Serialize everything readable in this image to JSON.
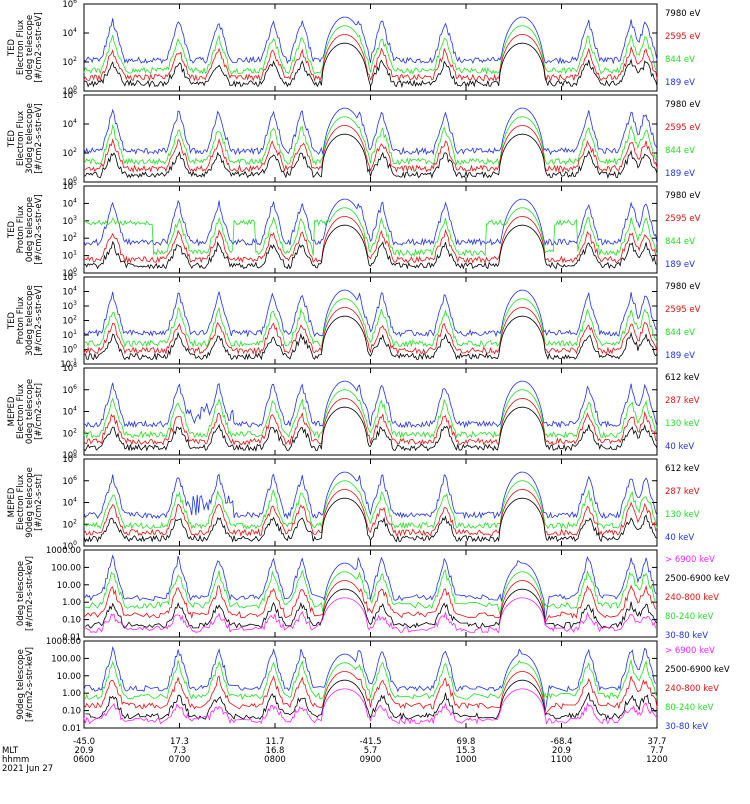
{
  "colors": {
    "blue": "#1f33e6",
    "red": "#e51010",
    "green": "#22e022",
    "black": "#000000",
    "magenta": "#ff22ff"
  },
  "chart_data": [
    {
      "type": "line",
      "scale": "log",
      "ylim": [
        1,
        1000000
      ],
      "ylabel": [
        "TED",
        "Electron Flux",
        "0deg telescope",
        "[#/cm2-s-str-eV]"
      ],
      "series": [
        {
          "name": "7980 eV",
          "color": "black"
        },
        {
          "name": "2595 eV",
          "color": "red"
        },
        {
          "name": "844 eV",
          "color": "green"
        },
        {
          "name": "189 eV",
          "color": "blue"
        }
      ],
      "ticks": [
        "10^0",
        "10^2",
        "10^4",
        "10^6"
      ]
    },
    {
      "type": "line",
      "scale": "log",
      "ylim": [
        1,
        1000000
      ],
      "ylabel": [
        "TED",
        "Electron Flux",
        "30deg telescope",
        "[#/cm2-s-str-eV]"
      ],
      "series": [
        {
          "name": "7980 eV",
          "color": "black"
        },
        {
          "name": "2595 eV",
          "color": "red"
        },
        {
          "name": "844 eV",
          "color": "green"
        },
        {
          "name": "189 eV",
          "color": "blue"
        }
      ],
      "ticks": [
        "10^0",
        "10^2",
        "10^4",
        "10^6"
      ]
    },
    {
      "type": "line",
      "scale": "log",
      "ylim": [
        1,
        100000
      ],
      "ylabel": [
        "TED",
        "Proton Flux",
        "0deg telescope",
        "[#/cm2-s-str-eV]"
      ],
      "series": [
        {
          "name": "7980 eV",
          "color": "black"
        },
        {
          "name": "2595 eV",
          "color": "red"
        },
        {
          "name": "844 eV",
          "color": "green"
        },
        {
          "name": "189 eV",
          "color": "blue"
        }
      ],
      "ticks": [
        "10^0",
        "10^1",
        "10^2",
        "10^3",
        "10^4",
        "10^5"
      ]
    },
    {
      "type": "line",
      "scale": "log",
      "ylim": [
        0.1,
        100000
      ],
      "ylabel": [
        "TED",
        "Proton Flux",
        "30deg telescope",
        "[#/cm2-s-str-eV]"
      ],
      "series": [
        {
          "name": "7980 eV",
          "color": "black"
        },
        {
          "name": "2595 eV",
          "color": "red"
        },
        {
          "name": "844 eV",
          "color": "green"
        },
        {
          "name": "189 eV",
          "color": "blue"
        }
      ],
      "ticks": [
        "10^-1",
        "10^0",
        "10^1",
        "10^2",
        "10^3",
        "10^4",
        "10^5"
      ]
    },
    {
      "type": "line",
      "scale": "log",
      "ylim": [
        1,
        100000000
      ],
      "ylabel": [
        "MEPED",
        "Electron Flux",
        "0deg telescope",
        "[#/cm2-s-str]"
      ],
      "series": [
        {
          "name": "612 keV",
          "color": "black"
        },
        {
          "name": "287 keV",
          "color": "red"
        },
        {
          "name": "130 keV",
          "color": "green"
        },
        {
          "name": "40 keV",
          "color": "blue"
        }
      ],
      "ticks": [
        "10^0",
        "10^2",
        "10^4",
        "10^6",
        "10^8"
      ]
    },
    {
      "type": "line",
      "scale": "log",
      "ylim": [
        1,
        100000000
      ],
      "ylabel": [
        "MEPED",
        "Electron Flux",
        "90deg telescope",
        "[#/cm2-s-str]"
      ],
      "series": [
        {
          "name": "612 keV",
          "color": "black"
        },
        {
          "name": "287 keV",
          "color": "red"
        },
        {
          "name": "130 keV",
          "color": "green"
        },
        {
          "name": "40 keV",
          "color": "blue"
        }
      ],
      "ticks": [
        "10^0",
        "10^2",
        "10^4",
        "10^6",
        "10^8"
      ]
    },
    {
      "type": "line",
      "scale": "log",
      "ylim": [
        0.01,
        1000
      ],
      "ylabel": [
        "0deg telescope",
        "[#/cm2-s-str-keV]"
      ],
      "series": [
        {
          "name": "> 6900 keV",
          "color": "magenta"
        },
        {
          "name": "2500-6900 keV",
          "color": "black"
        },
        {
          "name": "240-800 keV",
          "color": "red"
        },
        {
          "name": "80-240 keV",
          "color": "green"
        },
        {
          "name": "30-80 keV",
          "color": "blue"
        }
      ],
      "ticks": [
        "0.01",
        "0.10",
        "1.00",
        "10.00",
        "100.00",
        "1000.00"
      ]
    },
    {
      "type": "line",
      "scale": "log",
      "ylim": [
        0.01,
        1000
      ],
      "ylabel": [
        "90deg telescope",
        "[#/cm2-s-str-keV]"
      ],
      "series": [
        {
          "name": "> 6900 keV",
          "color": "magenta"
        },
        {
          "name": "2500-6900 keV",
          "color": "black"
        },
        {
          "name": "240-800 keV",
          "color": "red"
        },
        {
          "name": "80-240 keV",
          "color": "green"
        },
        {
          "name": "30-80 keV",
          "color": "blue"
        }
      ],
      "ticks": [
        "0.01",
        "0.10",
        "1.00",
        "10.00",
        "100.00",
        "1000.00"
      ]
    }
  ],
  "x_axis": {
    "row_labels": [
      "",
      "MLT",
      "hhmm",
      "2021 Jun 27"
    ],
    "latitude": [
      "-45.0",
      "17.3",
      "11.7",
      "-41.5",
      "69.8",
      "-68.4",
      "37.7"
    ],
    "mlt": [
      "20.9",
      "7.3",
      "16.8",
      "5.7",
      "15.3",
      "20.9",
      "7.7"
    ],
    "hhmm": [
      "0600",
      "0700",
      "0800",
      "0900",
      "1000",
      "1100",
      "1200"
    ]
  }
}
